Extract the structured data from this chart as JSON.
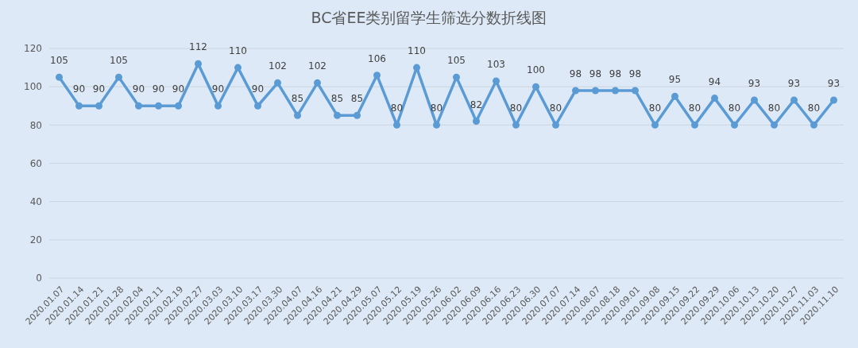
{
  "chart_data": {
    "type": "line",
    "title": "BC省EE类别留学生筛选分数折线图",
    "categories": [
      "2020.01.07",
      "2020.01.14",
      "2020.01.21",
      "2020.01.28",
      "2020.02.04",
      "2020.02.11",
      "2020.02.19",
      "2020.02.27",
      "2020.03.03",
      "2020.03.10",
      "2020.03.17",
      "2020.03.30",
      "2020.04.07",
      "2020.04.16",
      "2020.04.21",
      "2020.04.29",
      "2020.05.07",
      "2020.05.12",
      "2020.05.19",
      "2020.05.26",
      "2020.06.02",
      "2020.06.09",
      "2020.06.16",
      "2020.06.23",
      "2020.06.30",
      "2020.07.07",
      "2020.07.14",
      "2020.08.07",
      "2020.08.18",
      "2020.09.01",
      "2020.09.08",
      "2020.09.15",
      "2020.09.22",
      "2020.09.29",
      "2020.10.06",
      "2020.10.13",
      "2020.10.20",
      "2020.10.27",
      "2020.11.03",
      "2020.11.10"
    ],
    "series": [
      {
        "color": "#5b9bd5",
        "values": [
          105,
          90,
          90,
          105,
          90,
          90,
          90,
          112,
          90,
          110,
          90,
          102,
          85,
          102,
          85,
          85,
          106,
          80,
          110,
          80,
          105,
          82,
          103,
          80,
          100,
          80,
          98,
          98,
          98,
          98,
          80,
          95,
          80,
          94,
          80,
          93,
          80,
          93,
          80,
          93
        ]
      }
    ],
    "ylim": [
      0,
      120
    ],
    "yticks": [
      0,
      20,
      40,
      60,
      80,
      100,
      120
    ],
    "grid": "y",
    "marker": "circle",
    "line_style": "solid",
    "data_labels": true
  }
}
